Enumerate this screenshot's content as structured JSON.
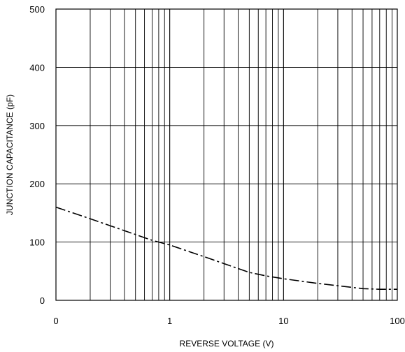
{
  "chart_data": {
    "type": "line",
    "title": "",
    "xlabel": "REVERSE VOLTAGE (V)",
    "ylabel": "JUNCTION CAPACITANCE  (pF)",
    "x_scale": "log",
    "xlim": [
      0.1,
      100
    ],
    "ylim": [
      0,
      500
    ],
    "grid": true,
    "x_tick_labels": [
      "0",
      "1",
      "10",
      "100"
    ],
    "y_ticks": [
      0,
      100,
      200,
      300,
      400,
      500
    ],
    "y_tick_labels": [
      "0",
      "100",
      "200",
      "300",
      "400",
      "500"
    ],
    "series": [
      {
        "line_style": "dash-dot",
        "color": "#000000",
        "x": [
          0.1,
          0.2,
          0.3,
          0.5,
          0.7,
          1,
          2,
          3,
          5,
          7,
          10,
          20,
          30,
          50,
          70,
          100
        ],
        "y": [
          160,
          140,
          128,
          113,
          103,
          95,
          75,
          63,
          48,
          42,
          37,
          29,
          25,
          20,
          19,
          19
        ]
      }
    ]
  }
}
